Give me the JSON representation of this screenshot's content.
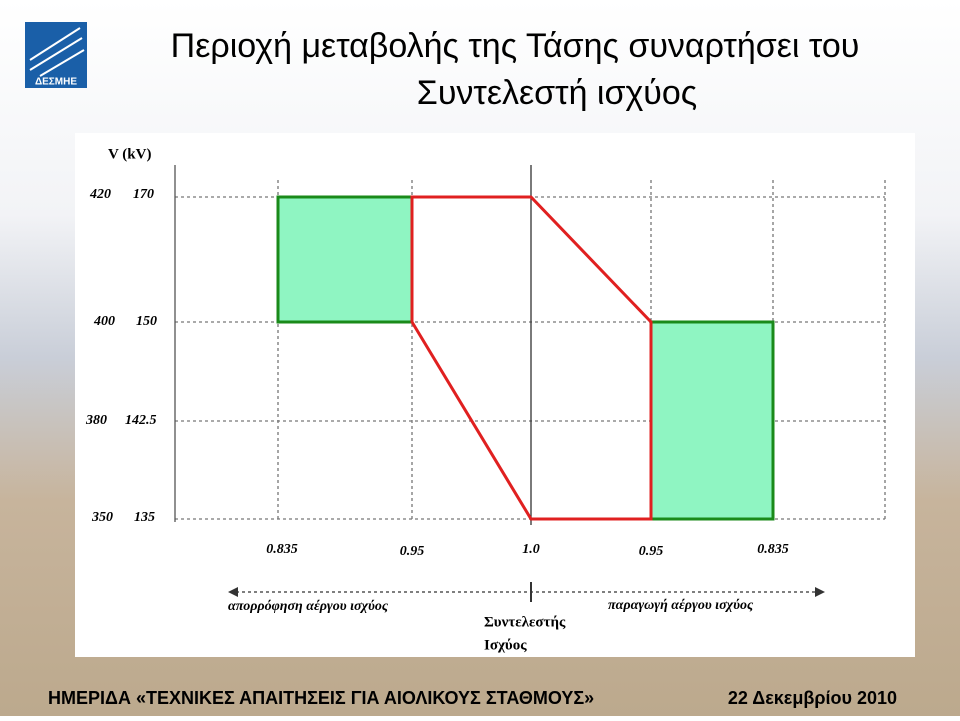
{
  "header": {
    "title_line1": "Περιοχή μεταβολής της Τάσης συναρτήσει του",
    "title_line2": "Συντελεστή ισχύος",
    "logo": "ΔΕΣΜΗΕ"
  },
  "diagram": {
    "y_axis_label": "V (kV)",
    "y_labels": [
      [
        "420",
        "170"
      ],
      [
        "400",
        "150"
      ],
      [
        "380",
        "142.5"
      ],
      [
        "350",
        "135"
      ]
    ],
    "x_labels": [
      "0.835",
      "0.95",
      "1.0",
      "0.95",
      "0.835"
    ],
    "left_arrow_label": "απορρόφηση αέργου ισχύος",
    "right_arrow_label": "παραγωγή αέργου ισχύος",
    "center_label": [
      "Συντελεστής",
      "Ισχύος"
    ]
  },
  "footer": {
    "event": "ΗΜΕΡΙΔΑ «ΤΕΧΝΙΚΕΣ ΑΠΑΙΤΗΣΕΙΣ ΓΙΑ ΑΙΟΛΙΚΟΥΣ ΣΤΑΘΜΟΥΣ»",
    "date": "22 Δεκεμβρίου 2010"
  }
}
